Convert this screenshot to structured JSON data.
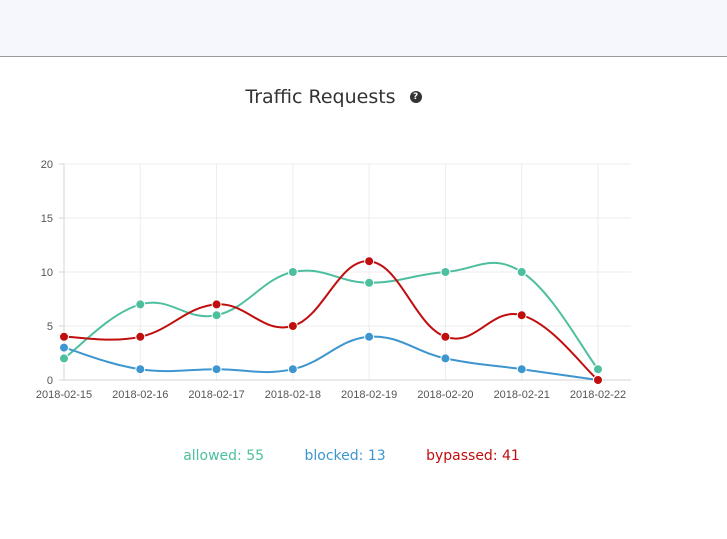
{
  "chart_data": {
    "type": "line",
    "title": "Traffic Requests",
    "title_icon": "question-circle-icon",
    "x": [
      "2018-02-15",
      "2018-02-16",
      "2018-02-17",
      "2018-02-18",
      "2018-02-19",
      "2018-02-20",
      "2018-02-21",
      "2018-02-22"
    ],
    "ylim": [
      0,
      20
    ],
    "yticks": [
      0,
      5,
      10,
      15,
      20
    ],
    "grid": true,
    "series": [
      {
        "name": "allowed",
        "color": "#4dbf9f",
        "total": 55,
        "values": [
          2,
          7,
          6,
          10,
          9,
          10,
          10,
          1
        ]
      },
      {
        "name": "blocked",
        "color": "#3d96cf",
        "total": 13,
        "values": [
          3,
          1,
          1,
          1,
          4,
          2,
          1,
          0
        ]
      },
      {
        "name": "bypassed",
        "color": "#c00e0e",
        "total": 41,
        "values": [
          4,
          4,
          7,
          5,
          11,
          4,
          6,
          0
        ]
      }
    ],
    "legend_position": "bottom",
    "legend_labels": [
      "allowed: 55",
      "blocked: 13",
      "bypassed: 41"
    ]
  }
}
